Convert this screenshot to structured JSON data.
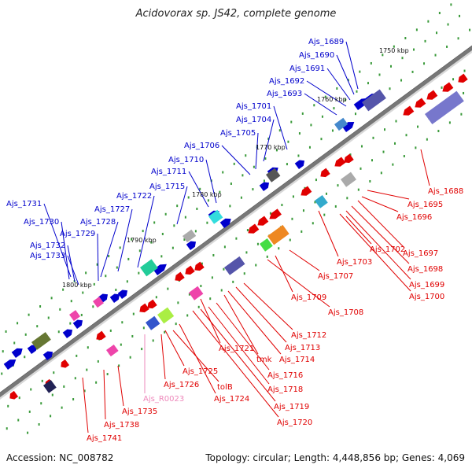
{
  "title": "Acidovorax sp. JS42, complete genome",
  "accession": "Accession: NC_008782",
  "summary": "Topology: circular; Length: 4,448,856 bp; Genes: 4,069",
  "colors": {
    "forward": "#0000cc",
    "reverse": "#e00000",
    "rna": "#ee88bb",
    "backbone": "#888888"
  },
  "kbp_marks": [
    "1750 kbp",
    "1760 kbp",
    "1770 kbp",
    "1780 kbp",
    "1790 kbp",
    "1800 kbp"
  ],
  "forward_labels": [
    "Ajs_1689",
    "Ajs_1690",
    "Ajs_1691",
    "Ajs_1692",
    "Ajs_1693",
    "Ajs_1701",
    "Ajs_1704",
    "Ajs_1705",
    "Ajs_1706",
    "Ajs_1710",
    "Ajs_1711",
    "Ajs_1715",
    "Ajs_1722",
    "Ajs_1727",
    "Ajs_1728",
    "Ajs_1729",
    "Ajs_1731",
    "Ajs_1730",
    "Ajs_1732",
    "Ajs_1733"
  ],
  "reverse_labels": [
    "Ajs_1688",
    "Ajs_1695",
    "Ajs_1696",
    "Ajs_1697",
    "Ajs_1698",
    "Ajs_1699",
    "Ajs_1700",
    "Ajs_1702",
    "Ajs_1703",
    "Ajs_1707",
    "Ajs_1709",
    "Ajs_1708",
    "Ajs_1712",
    "Ajs_1713",
    "Ajs_1714",
    "Ajs_1721",
    "tmk",
    "Ajs_1716",
    "Ajs_1718",
    "Ajs_1719",
    "Ajs_1720",
    "Ajs_1725",
    "Ajs_1726",
    "tolB",
    "Ajs_1724",
    "Ajs_R0023",
    "Ajs_1735",
    "Ajs_1738",
    "Ajs_1741"
  ]
}
